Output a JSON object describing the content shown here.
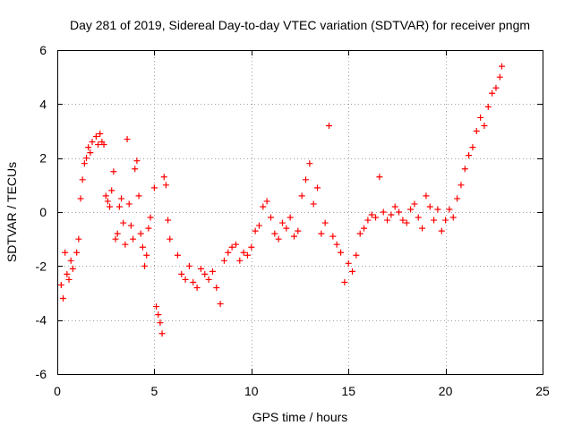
{
  "chart_data": {
    "type": "scatter",
    "title": "Day 281 of 2019, Sidereal Day-to-day VTEC variation (SDTVAR) for receiver pngm",
    "xlabel": "GPS time / hours",
    "ylabel": "SDTVAR / TECUs",
    "xlim": [
      0,
      25
    ],
    "ylim": [
      -6,
      6
    ],
    "xticks": [
      0,
      5,
      10,
      15,
      20,
      25
    ],
    "yticks": [
      -6,
      -4,
      -2,
      0,
      2,
      4,
      6
    ],
    "xtick_labels": [
      "0",
      "5",
      "10",
      "15",
      "20",
      "25"
    ],
    "ytick_labels": [
      "-6",
      "-4",
      "-2",
      "0",
      "2",
      "4",
      "6"
    ],
    "grid": true,
    "marker": "plus",
    "color": "#ff0000",
    "series": [
      {
        "name": "SDTVAR",
        "x": [
          0.2,
          0.3,
          0.4,
          0.5,
          0.6,
          0.7,
          0.8,
          1.0,
          1.1,
          1.2,
          1.3,
          1.4,
          1.5,
          1.6,
          1.7,
          1.8,
          2.0,
          2.1,
          2.2,
          2.3,
          2.4,
          2.5,
          2.6,
          2.7,
          2.8,
          2.9,
          3.0,
          3.1,
          3.2,
          3.3,
          3.4,
          3.5,
          3.6,
          3.7,
          3.8,
          3.9,
          4.0,
          4.1,
          4.2,
          4.3,
          4.4,
          4.5,
          4.6,
          4.7,
          4.8,
          5.0,
          5.1,
          5.2,
          5.3,
          5.4,
          5.5,
          5.6,
          5.7,
          5.8,
          6.2,
          6.4,
          6.6,
          6.8,
          7.0,
          7.2,
          7.4,
          7.6,
          7.8,
          8.0,
          8.2,
          8.4,
          8.6,
          8.8,
          9.0,
          9.2,
          9.4,
          9.6,
          9.8,
          10.0,
          10.2,
          10.4,
          10.6,
          10.8,
          11.0,
          11.2,
          11.4,
          11.6,
          11.8,
          12.0,
          12.2,
          12.4,
          12.6,
          12.8,
          13.0,
          13.2,
          13.4,
          13.6,
          13.8,
          14.0,
          14.2,
          14.4,
          14.6,
          14.8,
          15.0,
          15.2,
          15.4,
          15.6,
          15.8,
          16.0,
          16.2,
          16.4,
          16.6,
          16.8,
          17.0,
          17.2,
          17.4,
          17.6,
          17.8,
          18.0,
          18.2,
          18.4,
          18.6,
          18.8,
          19.0,
          19.2,
          19.4,
          19.6,
          19.8,
          20.0,
          20.2,
          20.4,
          20.6,
          20.8,
          21.0,
          21.2,
          21.4,
          21.6,
          21.8,
          22.0,
          22.2,
          22.4,
          22.6,
          22.8,
          22.9
        ],
        "y": [
          -2.7,
          -3.2,
          -1.5,
          -2.3,
          -2.5,
          -1.8,
          -2.1,
          -1.5,
          -1.0,
          0.5,
          1.2,
          1.8,
          2.0,
          2.4,
          2.2,
          2.6,
          2.8,
          2.5,
          2.9,
          2.6,
          2.5,
          0.6,
          0.4,
          0.2,
          0.8,
          1.5,
          -1.0,
          -0.8,
          0.2,
          0.5,
          -0.4,
          -1.2,
          2.7,
          0.3,
          -0.5,
          -1.0,
          1.6,
          1.9,
          0.6,
          -0.8,
          -1.3,
          -2.0,
          -1.6,
          -0.6,
          -0.2,
          0.9,
          -3.5,
          -3.8,
          -4.1,
          -4.5,
          1.3,
          1.0,
          -0.3,
          -1.0,
          -1.6,
          -2.3,
          -2.5,
          -2.0,
          -2.6,
          -2.8,
          -2.1,
          -2.3,
          -2.5,
          -2.2,
          -2.8,
          -3.4,
          -1.8,
          -1.5,
          -1.3,
          -1.2,
          -1.8,
          -1.5,
          -1.6,
          -1.3,
          -0.7,
          -0.5,
          0.2,
          0.4,
          -0.2,
          -0.8,
          -1.0,
          -0.4,
          -0.6,
          -0.2,
          -0.9,
          -0.7,
          0.6,
          1.2,
          1.8,
          0.3,
          0.9,
          -0.8,
          -0.4,
          3.2,
          -0.9,
          -1.2,
          -1.5,
          -2.6,
          -1.9,
          -2.2,
          -1.6,
          -0.8,
          -0.6,
          -0.3,
          -0.1,
          -0.2,
          1.3,
          0.0,
          -0.3,
          -0.1,
          0.2,
          0.0,
          -0.3,
          -0.4,
          0.1,
          0.3,
          -0.2,
          -0.6,
          0.6,
          0.2,
          -0.3,
          0.1,
          -0.7,
          -0.3,
          0.1,
          -0.2,
          0.5,
          1.0,
          1.6,
          2.1,
          2.4,
          3.0,
          3.5,
          3.2,
          3.9,
          4.4,
          4.6,
          5.0,
          5.4
        ]
      }
    ]
  }
}
